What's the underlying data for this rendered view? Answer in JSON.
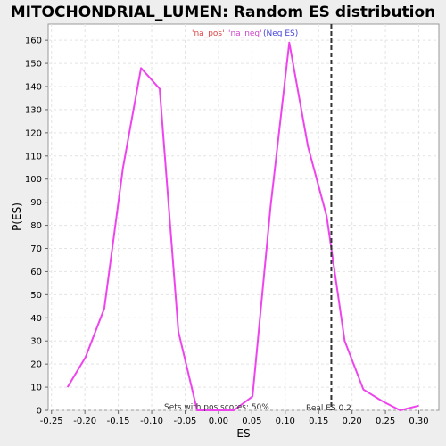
{
  "chart_data": {
    "type": "line",
    "title": "MITOCHONDRIAL_LUMEN: Random ES distribution",
    "xlabel": "ES",
    "ylabel": "P(ES)",
    "xlim": [
      -0.255,
      0.33
    ],
    "ylim": [
      0,
      167
    ],
    "grid": true,
    "x_ticks": [
      "-0.25",
      "-0.20",
      "-0.15",
      "-0.10",
      "-0.05",
      "0.00",
      "0.05",
      "0.10",
      "0.15",
      "0.20",
      "0.25",
      "0.30"
    ],
    "x_tick_values": [
      -0.25,
      -0.2,
      -0.15,
      -0.1,
      -0.05,
      0.0,
      0.05,
      0.1,
      0.15,
      0.2,
      0.25,
      0.3
    ],
    "y_ticks": [
      "0",
      "10",
      "20",
      "30",
      "40",
      "50",
      "60",
      "70",
      "80",
      "90",
      "100",
      "110",
      "120",
      "130",
      "140",
      "150",
      "160"
    ],
    "y_tick_values": [
      0,
      10,
      20,
      30,
      40,
      50,
      60,
      70,
      80,
      90,
      100,
      110,
      120,
      130,
      140,
      150,
      160
    ],
    "series": [
      {
        "color": "#ee44ee",
        "x": [
          -0.226,
          -0.199,
          -0.171,
          -0.143,
          -0.116,
          -0.088,
          -0.06,
          -0.032,
          -0.005,
          0.023,
          0.051,
          0.078,
          0.106,
          0.134,
          0.162,
          0.189,
          0.217,
          0.245,
          0.272,
          0.3
        ],
        "y": [
          10,
          23,
          44,
          105,
          148,
          139,
          34,
          0,
          0,
          0,
          6,
          88,
          159,
          114,
          84,
          30,
          9,
          4,
          0,
          2
        ]
      }
    ],
    "real_es": {
      "value": 0.169,
      "label": "Real ES 0.2",
      "color": "#333333"
    },
    "legend": [
      {
        "label": "'na_pos'",
        "color": "#dd4444"
      },
      {
        "label": "'na_neg'",
        "color": "#cc44cc"
      },
      {
        "label": "(Neg ES)",
        "color": "#4444dd"
      }
    ],
    "annotation": "Sets with pos scores: 50%"
  }
}
